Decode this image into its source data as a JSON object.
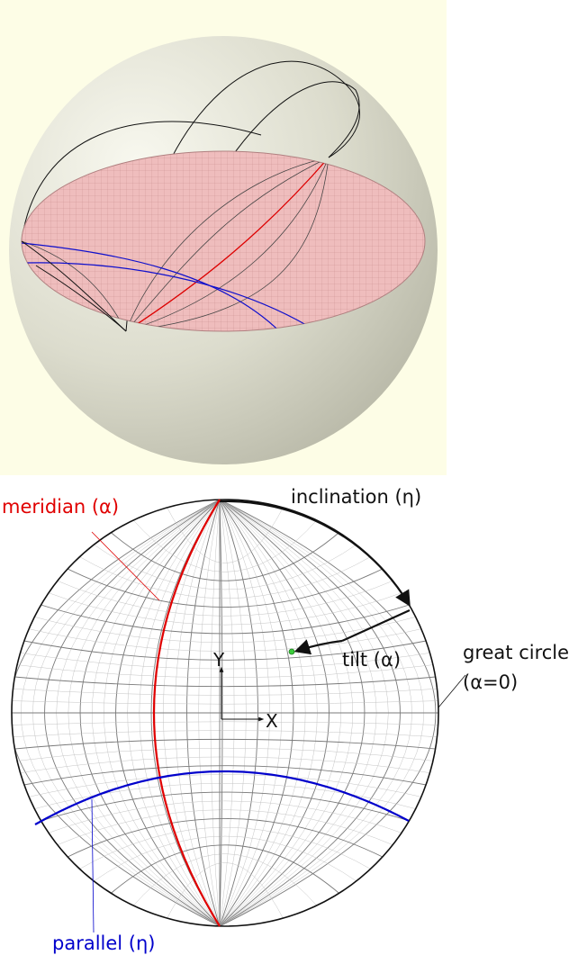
{
  "labels": {
    "meridian": "meridian (α)",
    "inclination": "inclination (η)",
    "tilt": "tilt (α)",
    "great_circle_line1": "great circle",
    "great_circle_line2": "(α=0)",
    "axis_y": "Y",
    "axis_x": "X",
    "parallel": "parallel (η)"
  },
  "colors": {
    "background_top": "#fdfde6",
    "sphere": "#e3e3d5",
    "disk": "#efb7b7",
    "meridian": "#e00000",
    "parallel": "#0000cc",
    "grid_fine": "#c4c4c4",
    "grid_major": "#7a7a7a",
    "point": "#3ccd3c"
  }
}
